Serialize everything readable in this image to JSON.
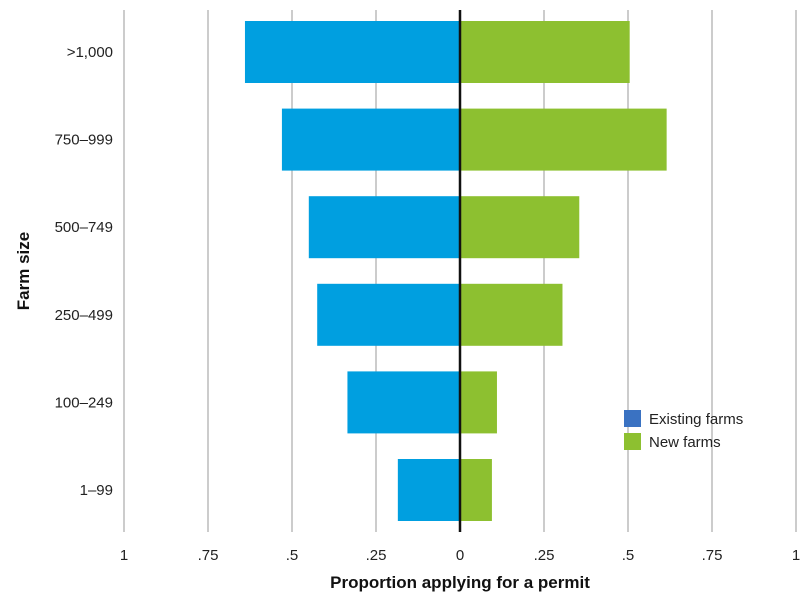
{
  "chart_data": {
    "type": "bar",
    "orientation": "horizontal-diverging",
    "title": "",
    "xlabel": "Proportion applying for a permit",
    "ylabel": "Farm size",
    "categories": [
      ">1,000",
      "750–999",
      "500–749",
      "250–499",
      "100–249",
      "1–99"
    ],
    "series": [
      {
        "name": "Existing farms",
        "values": [
          0.64,
          0.53,
          0.45,
          0.425,
          0.335,
          0.185
        ],
        "side": "left"
      },
      {
        "name": "New farms",
        "values": [
          0.505,
          0.615,
          0.355,
          0.305,
          0.11,
          0.095
        ],
        "side": "right"
      }
    ],
    "xlim": [
      -1,
      1
    ],
    "x_ticks": [
      -1,
      -0.75,
      -0.5,
      -0.25,
      0,
      0.25,
      0.5,
      0.75,
      1
    ],
    "x_tick_labels": [
      "1",
      ".75",
      ".5",
      ".25",
      "0",
      ".25",
      ".5",
      ".75",
      "1"
    ],
    "grid": "vertical",
    "legend": {
      "placement": "lower-right",
      "entries": [
        "Existing farms",
        "New farms"
      ],
      "swatch_colors": [
        "#3a72c2",
        "#8dc030"
      ]
    },
    "colors": {
      "existing_bars": "#009fe0",
      "new_bars": "#8dc030",
      "grid": "#9a9a9a",
      "zero_line": "#111111"
    }
  }
}
